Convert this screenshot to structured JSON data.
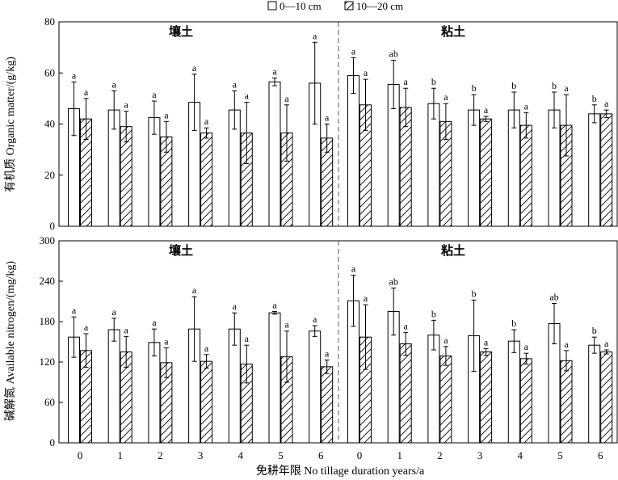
{
  "legend": [
    {
      "label": "0—10 cm",
      "pattern": "open"
    },
    {
      "label": "10—20 cm",
      "pattern": "hatch"
    }
  ],
  "xlabel": "免耕年限 No tillage duration years/a",
  "colors": {
    "stroke": "#000000",
    "divider": "#555555"
  },
  "chart_data": [
    {
      "type": "bar",
      "ylabel": "有机质 Organic matter/(g/kg)",
      "ylim": [
        0,
        80
      ],
      "yticks": [
        0,
        20,
        40,
        60,
        80
      ],
      "groups": [
        {
          "title": "壤土",
          "categories": [
            "0",
            "1",
            "2",
            "3",
            "4",
            "5",
            "6"
          ],
          "series": [
            {
              "name": "0—10 cm",
              "values": [
                46,
                45.5,
                42.5,
                48.5,
                45.5,
                56.5,
                56
              ],
              "errors": [
                10.5,
                7.5,
                6.5,
                11,
                7.5,
                1.5,
                16
              ],
              "sig": [
                "a",
                "a",
                "a",
                "a",
                "a",
                "a",
                "a"
              ]
            },
            {
              "name": "10—20 cm",
              "values": [
                42,
                39,
                35,
                36.5,
                36.5,
                36.5,
                34.5
              ],
              "errors": [
                8,
                6,
                6,
                2,
                12,
                11,
                5.5
              ],
              "sig": [
                "a",
                "a",
                "a",
                "a",
                "a",
                "a",
                "a"
              ]
            }
          ]
        },
        {
          "title": "粘土",
          "categories": [
            "0",
            "1",
            "2",
            "3",
            "4",
            "5",
            "6"
          ],
          "series": [
            {
              "name": "0—10 cm",
              "values": [
                59,
                55.5,
                48,
                45.5,
                45.5,
                45.5,
                44
              ],
              "errors": [
                7,
                9.5,
                6,
                6,
                7,
                7,
                3.5
              ],
              "sig": [
                "a",
                "ab",
                "b",
                "b",
                "b",
                "b",
                "b"
              ]
            },
            {
              "name": "10—20 cm",
              "values": [
                47.5,
                46.5,
                41,
                42,
                39.5,
                39.5,
                44
              ],
              "errors": [
                10,
                7.5,
                7,
                1,
                5,
                12,
                1.5
              ],
              "sig": [
                "a",
                "a",
                "a",
                "a",
                "a",
                "a",
                "a"
              ]
            }
          ]
        }
      ]
    },
    {
      "type": "bar",
      "ylabel": "碱解氮 Available nitrogen/(mg/kg)",
      "ylim": [
        0,
        300
      ],
      "yticks": [
        0,
        60,
        120,
        180,
        240,
        300
      ],
      "groups": [
        {
          "title": "壤土",
          "categories": [
            "0",
            "1",
            "2",
            "3",
            "4",
            "5",
            "6"
          ],
          "series": [
            {
              "name": "0—10 cm",
              "values": [
                157,
                168,
                149,
                169,
                169,
                193,
                166
              ],
              "errors": [
                30,
                17,
                20,
                48,
                24,
                2,
                8
              ],
              "sig": [
                "a",
                "a",
                "a",
                "a",
                "a",
                "a",
                "a"
              ]
            },
            {
              "name": "10—20 cm",
              "values": [
                137,
                135,
                119,
                121,
                117,
                128,
                113
              ],
              "errors": [
                25,
                23,
                22,
                10,
                28,
                38,
                10
              ],
              "sig": [
                "a",
                "a",
                "a",
                "a",
                "a",
                "a",
                "a"
              ]
            }
          ]
        },
        {
          "title": "粘土",
          "categories": [
            "0",
            "1",
            "2",
            "3",
            "4",
            "5",
            "6"
          ],
          "series": [
            {
              "name": "0—10 cm",
              "values": [
                211,
                195,
                160,
                159,
                151,
                177,
                145
              ],
              "errors": [
                38,
                35,
                22,
                53,
                17,
                30,
                12
              ],
              "sig": [
                "a",
                "ab",
                "b",
                "b",
                "b",
                "ab",
                "b"
              ]
            },
            {
              "name": "10—20 cm",
              "values": [
                157,
                147,
                129,
                135,
                125,
                122,
                135
              ],
              "errors": [
                48,
                17,
                14,
                5,
                8,
                15,
                3
              ],
              "sig": [
                "a",
                "a",
                "a",
                "a",
                "a",
                "a",
                "a"
              ]
            }
          ]
        }
      ]
    }
  ]
}
